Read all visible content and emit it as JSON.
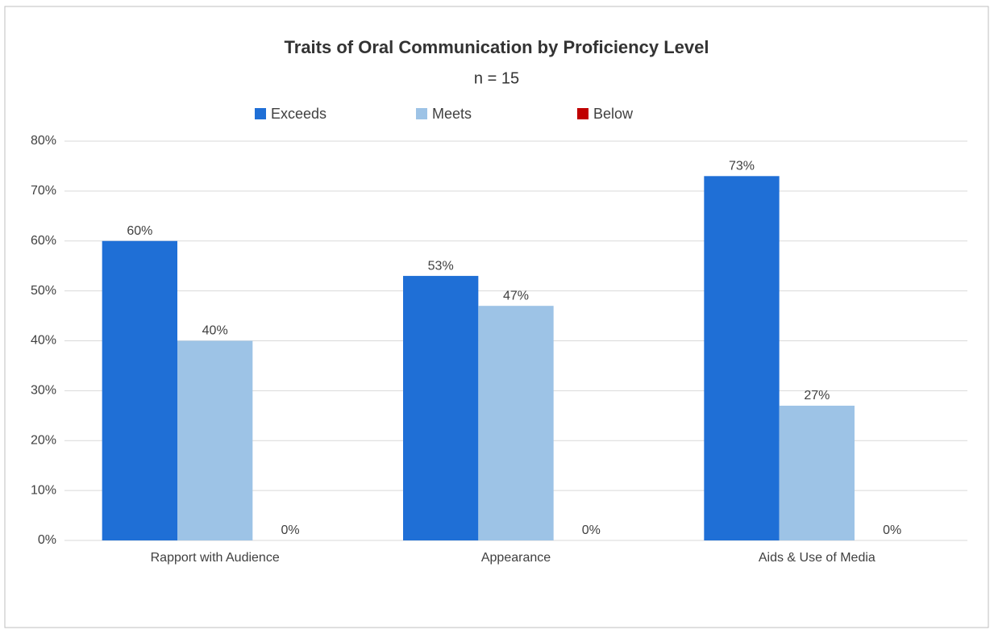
{
  "chart_data": {
    "type": "bar",
    "title": "Traits of Oral Communication by Proficiency Level",
    "subtitle": "n = 15",
    "categories": [
      "Rapport with Audience",
      "Appearance",
      "Aids & Use of Media"
    ],
    "series": [
      {
        "name": "Exceeds",
        "color": "#1f6fd6",
        "values": [
          60,
          53,
          73
        ],
        "value_labels": [
          "60%",
          "53%",
          "73%"
        ]
      },
      {
        "name": "Meets",
        "color": "#9dc3e6",
        "values": [
          40,
          47,
          27
        ],
        "value_labels": [
          "40%",
          "47%",
          "27%"
        ]
      },
      {
        "name": "Below",
        "color": "#c00000",
        "values": [
          0,
          0,
          0
        ],
        "value_labels": [
          "0%",
          "0%",
          "0%"
        ]
      }
    ],
    "ylim": [
      0,
      80
    ],
    "yticks": [
      {
        "value": 0,
        "label": "0%"
      },
      {
        "value": 10,
        "label": "10%"
      },
      {
        "value": 20,
        "label": "20%"
      },
      {
        "value": 30,
        "label": "30%"
      },
      {
        "value": 40,
        "label": "40%"
      },
      {
        "value": 50,
        "label": "50%"
      },
      {
        "value": 60,
        "label": "60%"
      },
      {
        "value": 70,
        "label": "70%"
      },
      {
        "value": 80,
        "label": "80%"
      }
    ],
    "grid": true
  }
}
